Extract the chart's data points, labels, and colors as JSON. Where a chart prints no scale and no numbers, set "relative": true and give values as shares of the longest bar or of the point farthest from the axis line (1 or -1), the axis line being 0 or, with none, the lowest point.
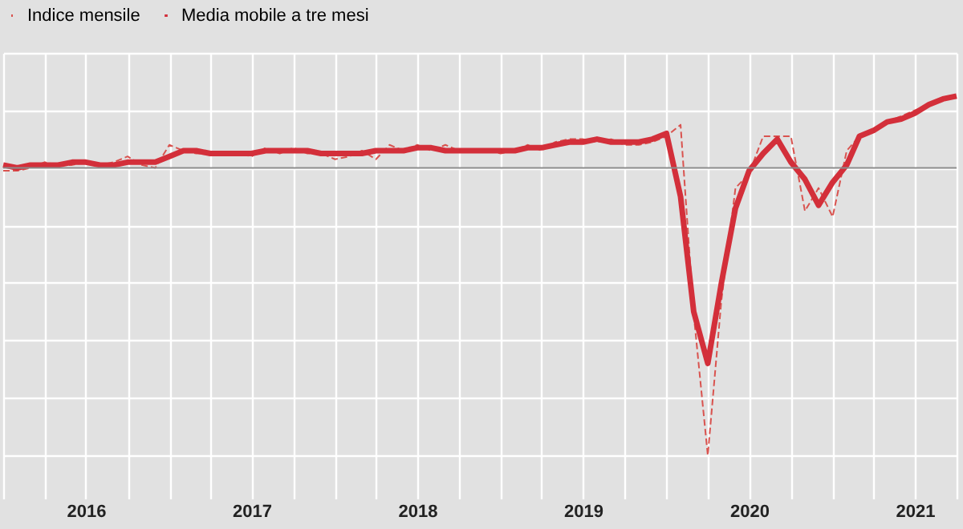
{
  "chart_data": {
    "type": "line",
    "relative": true,
    "x": [
      "2016-01",
      "2016-02",
      "2016-03",
      "2016-04",
      "2016-05",
      "2016-06",
      "2016-07",
      "2016-08",
      "2016-09",
      "2016-10",
      "2016-11",
      "2016-12",
      "2017-01",
      "2017-02",
      "2017-03",
      "2017-04",
      "2017-05",
      "2017-06",
      "2017-07",
      "2017-08",
      "2017-09",
      "2017-10",
      "2017-11",
      "2017-12",
      "2018-01",
      "2018-02",
      "2018-03",
      "2018-04",
      "2018-05",
      "2018-06",
      "2018-07",
      "2018-08",
      "2018-09",
      "2018-10",
      "2018-11",
      "2018-12",
      "2019-01",
      "2019-02",
      "2019-03",
      "2019-04",
      "2019-05",
      "2019-06",
      "2019-07",
      "2019-08",
      "2019-09",
      "2019-10",
      "2019-11",
      "2019-12",
      "2020-01",
      "2020-02",
      "2020-03",
      "2020-04",
      "2020-05",
      "2020-06",
      "2020-07",
      "2020-08",
      "2020-09",
      "2020-10",
      "2020-11",
      "2020-12",
      "2021-01",
      "2021-02",
      "2021-03",
      "2021-04",
      "2021-05",
      "2021-06",
      "2021-07",
      "2021-08",
      "2021-09",
      "2021-10"
    ],
    "series": [
      {
        "name": "Indice mensile",
        "color": "#d9534f",
        "line_style": "dashed",
        "values": [
          -0.01,
          -0.01,
          0,
          0.02,
          0.01,
          0.01,
          0.02,
          0.01,
          0.02,
          0.04,
          0.01,
          0,
          0.08,
          0.06,
          0.05,
          0.05,
          0.05,
          0.05,
          0.04,
          0.07,
          0.05,
          0.07,
          0.05,
          0.05,
          0.03,
          0.04,
          0.06,
          0.03,
          0.08,
          0.06,
          0.08,
          0.06,
          0.08,
          0.06,
          0.06,
          0.06,
          0.05,
          0.06,
          0.08,
          0.06,
          0.09,
          0.1,
          0.1,
          0.09,
          0.1,
          0.08,
          0.08,
          0.09,
          0.11,
          0.15,
          -0.51,
          -1,
          -0.46,
          -0.07,
          -0.02,
          0.11,
          0.11,
          0.11,
          -0.15,
          -0.07,
          -0.17,
          0.06,
          0.11,
          0.13,
          0.16,
          0.18,
          0.2,
          0.22,
          0.24,
          0.25
        ]
      },
      {
        "name": "Media mobile a tre mesi",
        "color": "#d32f3a",
        "line_style": "solid",
        "values": [
          0.01,
          0,
          0.01,
          0.01,
          0.01,
          0.02,
          0.02,
          0.01,
          0.01,
          0.02,
          0.02,
          0.02,
          0.04,
          0.06,
          0.06,
          0.05,
          0.05,
          0.05,
          0.05,
          0.06,
          0.06,
          0.06,
          0.06,
          0.05,
          0.05,
          0.05,
          0.05,
          0.06,
          0.06,
          0.06,
          0.07,
          0.07,
          0.06,
          0.06,
          0.06,
          0.06,
          0.06,
          0.06,
          0.07,
          0.07,
          0.08,
          0.09,
          0.09,
          0.1,
          0.09,
          0.09,
          0.09,
          0.1,
          0.12,
          -0.1,
          -0.5,
          -0.68,
          -0.4,
          -0.14,
          -0.01,
          0.05,
          0.1,
          0.02,
          -0.04,
          -0.13,
          -0.05,
          0.01,
          0.11,
          0.13,
          0.16,
          0.17,
          0.19,
          0.22,
          0.24,
          0.25
        ]
      }
    ],
    "xlim": [
      "2016-01",
      "2021-10"
    ],
    "xticks": [
      {
        "value": "2016-01",
        "label": null
      },
      {
        "value": "2016-04",
        "label": null
      },
      {
        "value": "2016-07",
        "label": "2016"
      },
      {
        "value": "2016-10",
        "label": null
      },
      {
        "value": "2017-01",
        "label": null
      },
      {
        "value": "2017-04",
        "label": null
      },
      {
        "value": "2017-07",
        "label": "2017"
      },
      {
        "value": "2017-10",
        "label": null
      },
      {
        "value": "2018-01",
        "label": null
      },
      {
        "value": "2018-04",
        "label": null
      },
      {
        "value": "2018-07",
        "label": "2018"
      },
      {
        "value": "2018-10",
        "label": null
      },
      {
        "value": "2019-01",
        "label": null
      },
      {
        "value": "2019-04",
        "label": null
      },
      {
        "value": "2019-07",
        "label": "2019"
      },
      {
        "value": "2019-10",
        "label": null
      },
      {
        "value": "2020-01",
        "label": null
      },
      {
        "value": "2020-04",
        "label": null
      },
      {
        "value": "2020-07",
        "label": "2020"
      },
      {
        "value": "2020-10",
        "label": null
      },
      {
        "value": "2021-01",
        "label": null
      },
      {
        "value": "2021-04",
        "label": null
      },
      {
        "value": "2021-07",
        "label": "2021"
      },
      {
        "value": "2021-10",
        "label": null
      }
    ],
    "ref_lines": [
      {
        "axis": "y",
        "value": 0,
        "color": "#8c8c8c"
      }
    ],
    "grid": true,
    "legend": "top",
    "marker": "none"
  }
}
